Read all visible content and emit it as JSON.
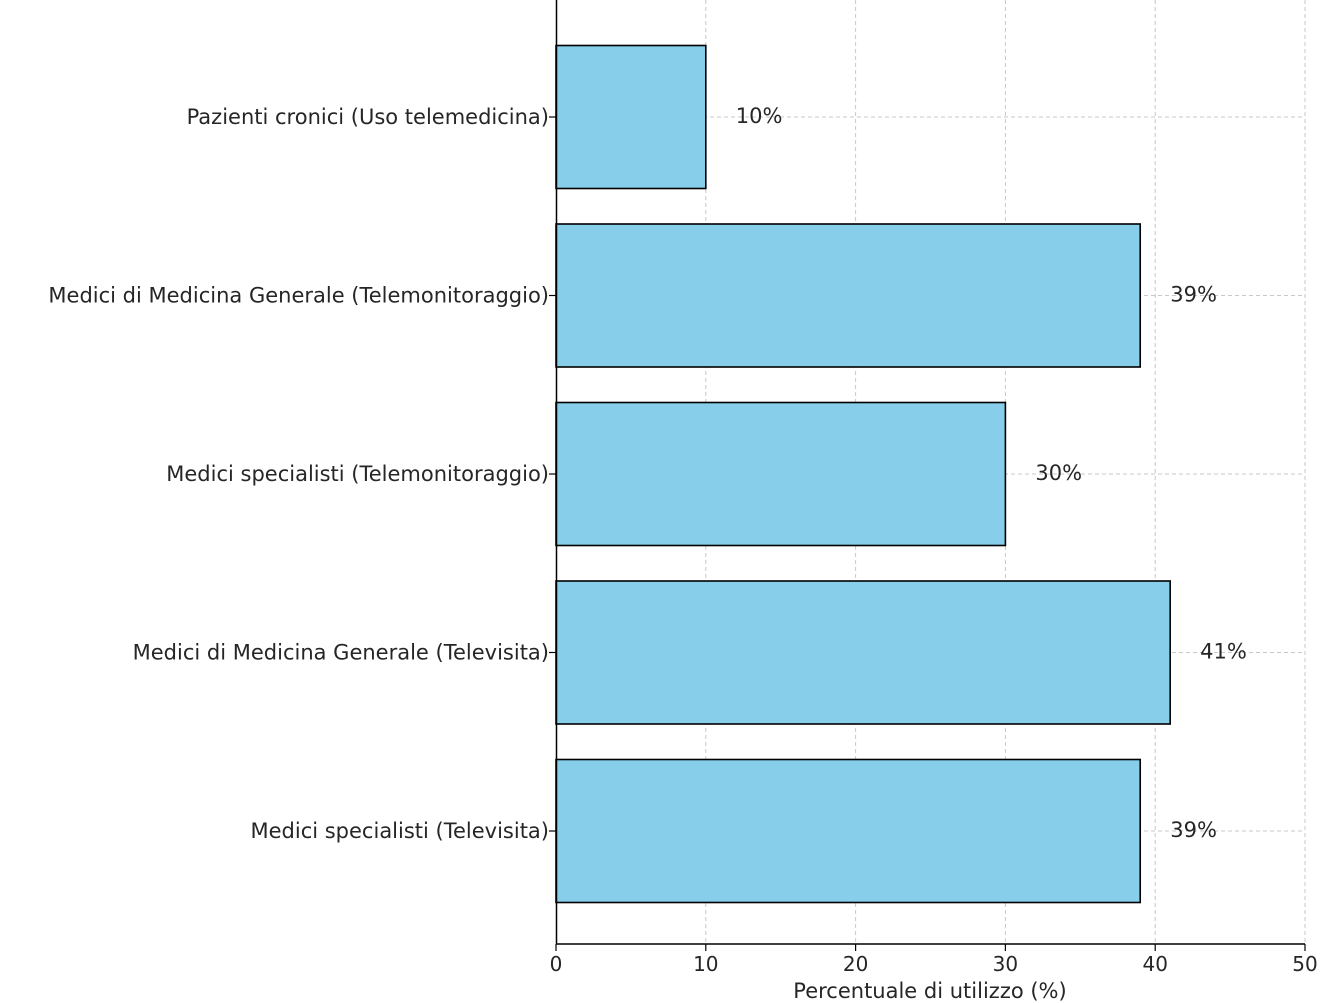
{
  "chart_data": {
    "type": "bar",
    "orientation": "horizontal",
    "categories": [
      "Pazienti cronici (Uso telemedicina)",
      "Medici di Medicina Generale (Telemonitoraggio)",
      "Medici specialisti (Telemonitoraggio)",
      "Medici di Medicina Generale (Televisita)",
      "Medici specialisti (Televisita)"
    ],
    "values": [
      10,
      39,
      30,
      41,
      39
    ],
    "data_labels": [
      "10%",
      "39%",
      "30%",
      "41%",
      "39%"
    ],
    "xlabel": "Percentuale di utilizzo (%)",
    "ylabel": "",
    "xlim": [
      0,
      50
    ],
    "xticks": [
      0,
      10,
      20,
      30,
      40,
      50
    ],
    "grid": true,
    "bar_color": "#87CEEB",
    "bar_edge_color": "#000000"
  }
}
